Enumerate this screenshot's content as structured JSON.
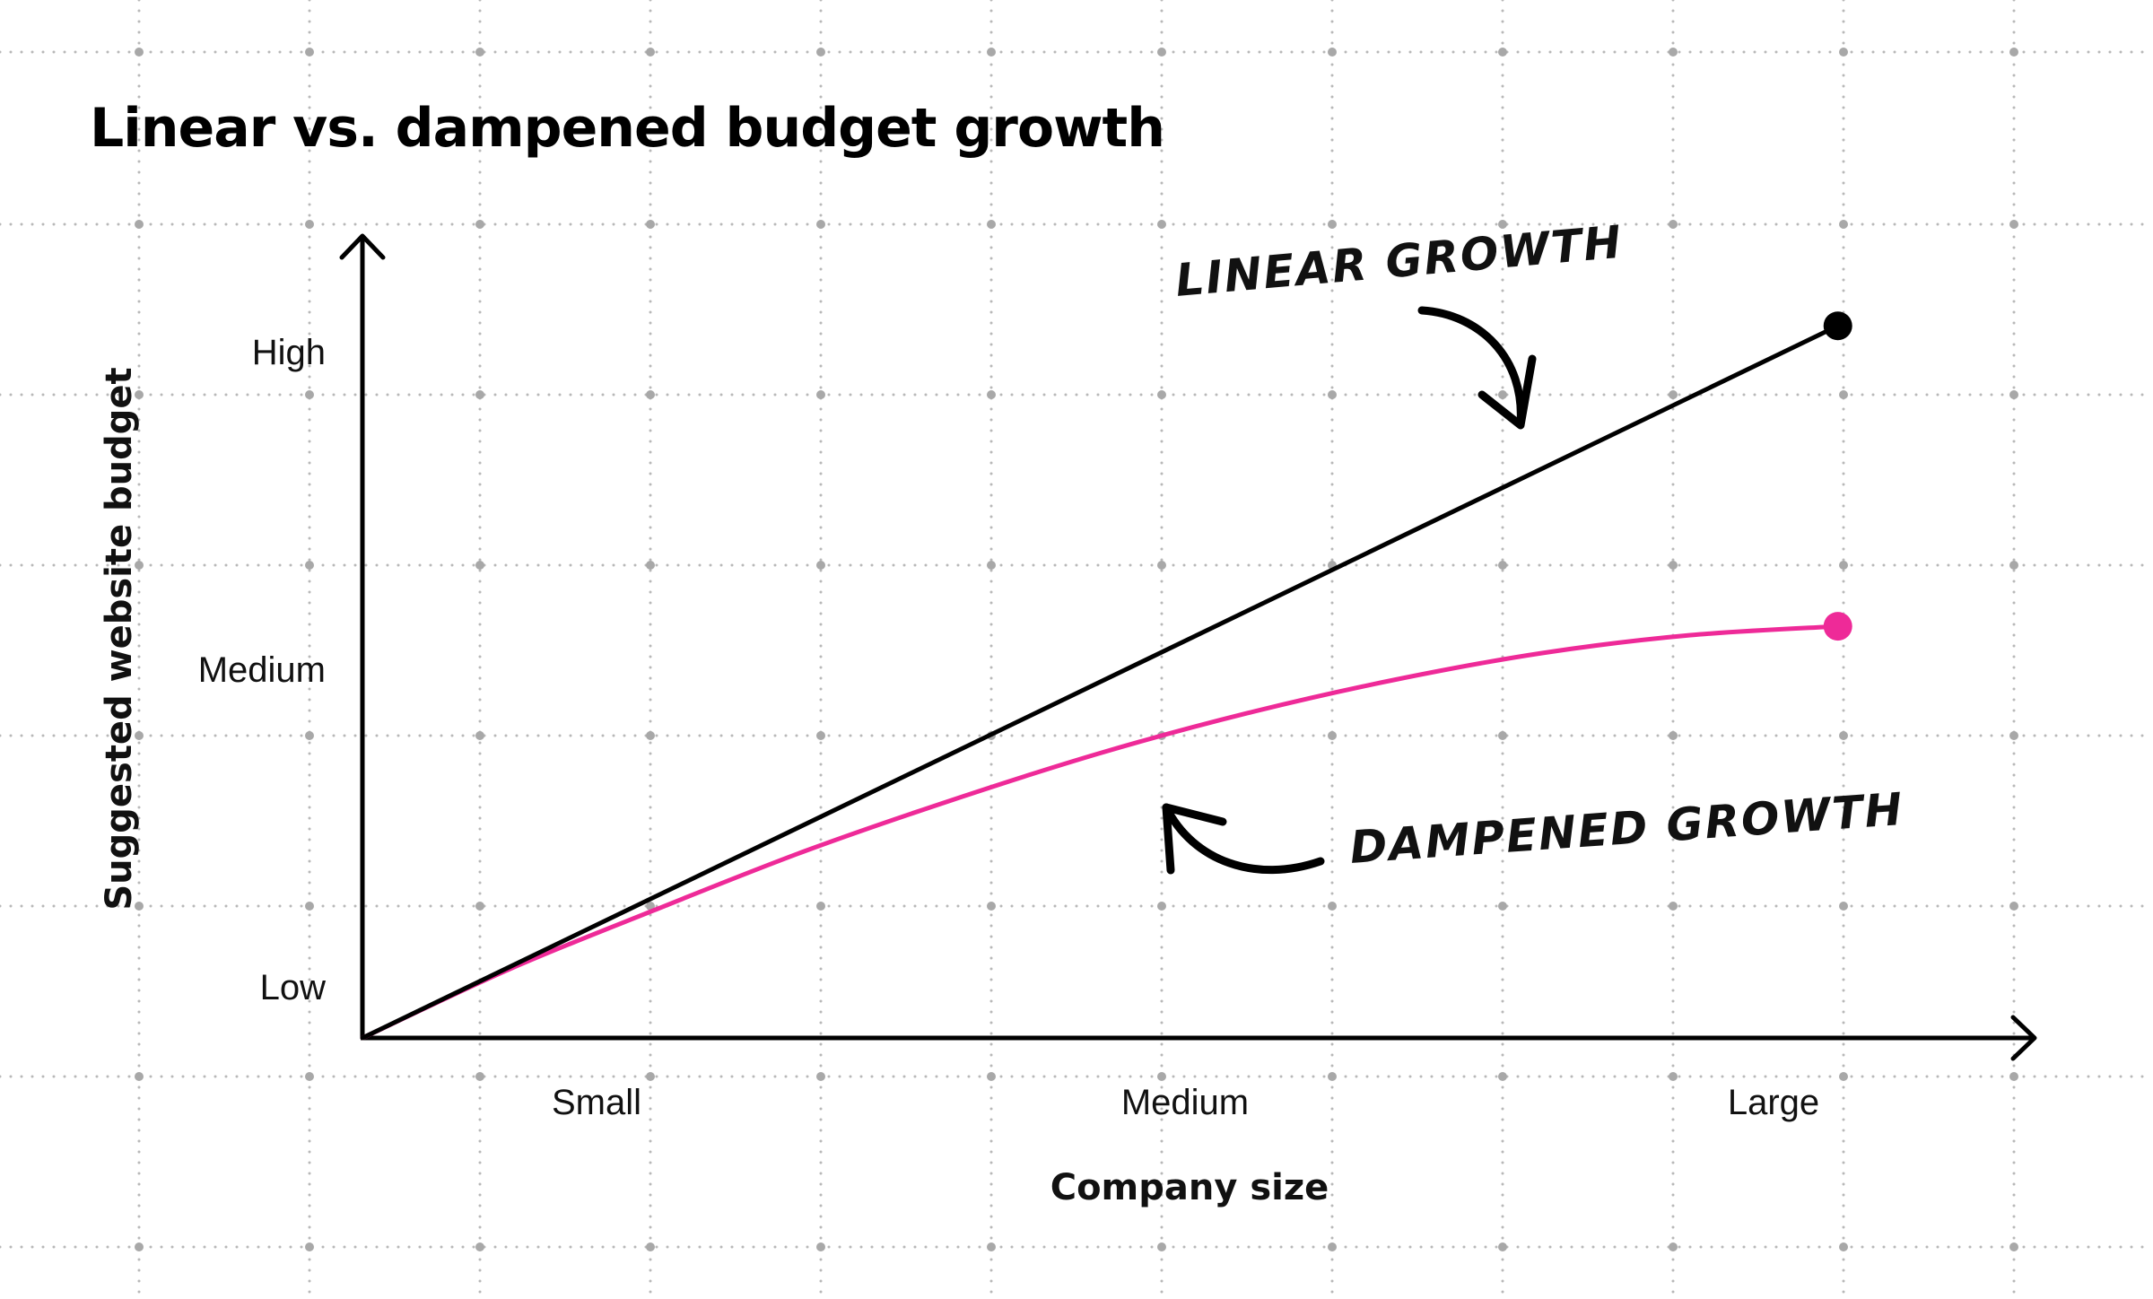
{
  "title": "Linear vs. dampened budget growth",
  "colors": {
    "linear": "#000000",
    "dampened": "#ee2a98",
    "axis": "#000000",
    "grid_dots": "#b8b8b8"
  },
  "chart_data": {
    "type": "line",
    "title": "Linear vs. dampened budget growth",
    "xlabel": "Company size",
    "ylabel": "Suggested website budget",
    "x_ticks": [
      "Small",
      "Medium",
      "Large"
    ],
    "y_ticks": [
      "Low",
      "Medium",
      "High"
    ],
    "xlim": [
      0,
      3.4
    ],
    "ylim": [
      0,
      3.6
    ],
    "grid": false,
    "x_tick_values": [
      0.6,
      1.8,
      3.0
    ],
    "y_tick_values": [
      0.25,
      1.75,
      3.25
    ],
    "series": [
      {
        "name": "LINEAR GROWTH",
        "color": "#000000",
        "end_marker": true,
        "x": [
          0,
          3.0
        ],
        "y": [
          0,
          3.2
        ]
      },
      {
        "name": "DAMPENED GROWTH",
        "color": "#ee2a98",
        "end_marker": true,
        "x": [
          0,
          0.3,
          0.6,
          0.9,
          1.2,
          1.5,
          1.8,
          2.1,
          2.4,
          2.7,
          3.0
        ],
        "y": [
          0,
          0.31,
          0.58,
          0.84,
          1.07,
          1.28,
          1.46,
          1.61,
          1.73,
          1.81,
          1.85
        ]
      }
    ],
    "annotations": [
      {
        "text": "LINEAR GROWTH",
        "points_to": "LINEAR GROWTH"
      },
      {
        "text": "DAMPENED GROWTH",
        "points_to": "DAMPENED GROWTH"
      }
    ]
  }
}
